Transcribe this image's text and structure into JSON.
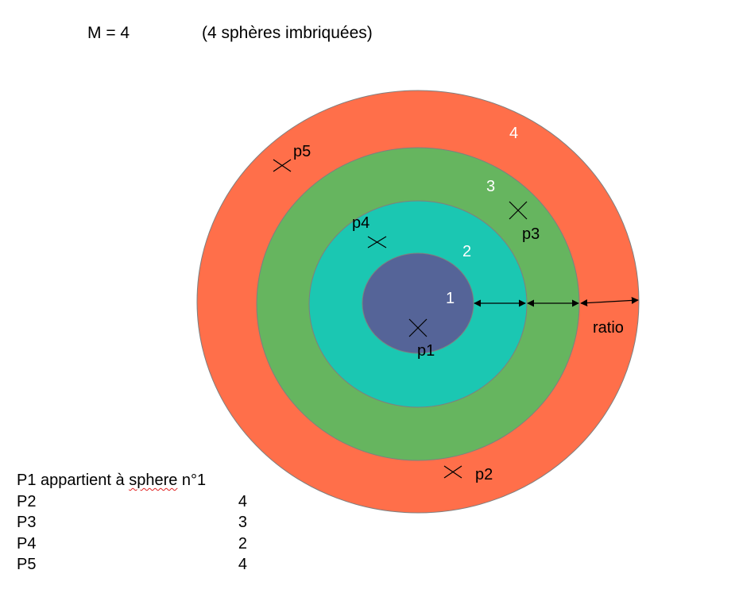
{
  "header": {
    "m_label": "M = 4",
    "subtitle": "(4 sphères imbriquées)"
  },
  "colors": {
    "ring4": "#ff6f4a",
    "ring3": "#66b55f",
    "ring2": "#1bc7b2",
    "ring1": "#556498",
    "outline": "#7f7f7f"
  },
  "rings": [
    {
      "number": "1"
    },
    {
      "number": "2"
    },
    {
      "number": "3"
    },
    {
      "number": "4"
    }
  ],
  "points": [
    {
      "label": "p1"
    },
    {
      "label": "p2"
    },
    {
      "label": "p3"
    },
    {
      "label": "p4"
    },
    {
      "label": "p5"
    }
  ],
  "ratio_label": "ratio",
  "membership": {
    "first_prefix": "P1 appartient à ",
    "first_underlined": "sphere",
    "first_suffix": " n°1",
    "rows": [
      {
        "name": "P2",
        "sphere": "4"
      },
      {
        "name": "P3",
        "sphere": "3"
      },
      {
        "name": "P4",
        "sphere": "2"
      },
      {
        "name": "P5",
        "sphere": "4"
      }
    ]
  }
}
